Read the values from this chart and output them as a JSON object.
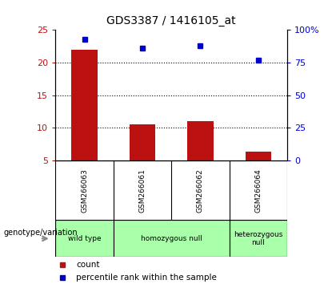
{
  "title": "GDS3387 / 1416105_at",
  "samples": [
    "GSM266063",
    "GSM266061",
    "GSM266062",
    "GSM266064"
  ],
  "counts": [
    22.0,
    10.5,
    11.0,
    6.3
  ],
  "percentiles": [
    93,
    86,
    88,
    77
  ],
  "ylim_left": [
    5,
    25
  ],
  "ylim_right": [
    0,
    100
  ],
  "yticks_left": [
    5,
    10,
    15,
    20,
    25
  ],
  "yticks_right": [
    0,
    25,
    50,
    75,
    100
  ],
  "ytick_labels_right": [
    "0",
    "25",
    "50",
    "75",
    "100%"
  ],
  "bar_color": "#bb1111",
  "dot_color": "#0000cc",
  "bg_color": "#ffffff",
  "plot_bg": "#ffffff",
  "xlabel_area_color": "#cccccc",
  "geno_color": "#aaffaa",
  "groups_info": [
    {
      "start": 0,
      "end": 0,
      "label": "wild type"
    },
    {
      "start": 1,
      "end": 2,
      "label": "homozygous null"
    },
    {
      "start": 3,
      "end": 3,
      "label": "heterozygous\nnull"
    }
  ],
  "legend_count_color": "#bb1111",
  "legend_pct_color": "#0000cc"
}
